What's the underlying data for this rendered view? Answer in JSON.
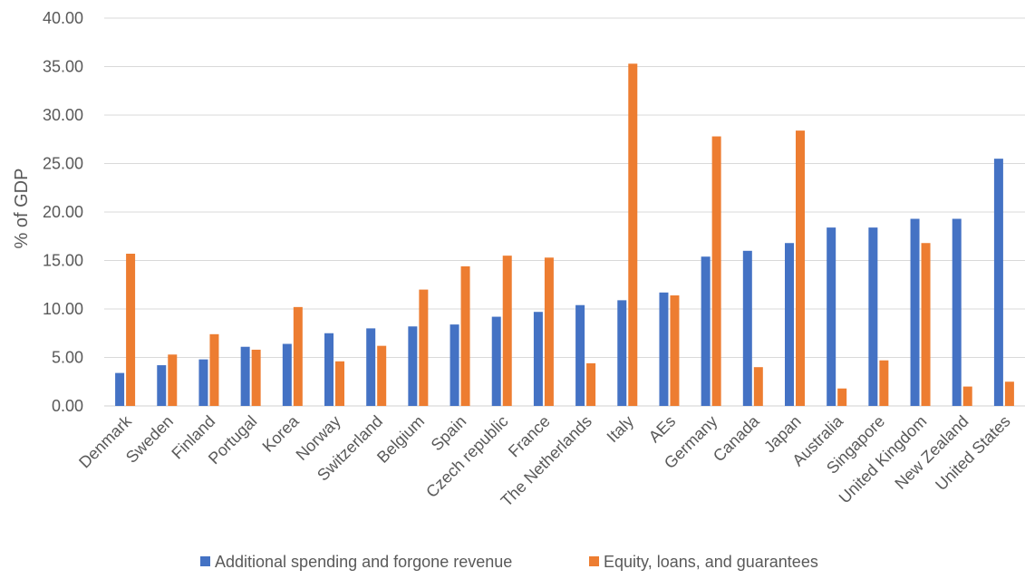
{
  "chart_data": {
    "type": "bar",
    "title": "",
    "xlabel": "",
    "ylabel": "% of GDP",
    "ylim": [
      0,
      40
    ],
    "yticks": [
      "0.00",
      "5.00",
      "10.00",
      "15.00",
      "20.00",
      "25.00",
      "30.00",
      "35.00",
      "40.00"
    ],
    "grid": true,
    "legend_position": "bottom",
    "categories": [
      "Denmark",
      "Sweden",
      "Finland",
      "Portugal",
      "Korea",
      "Norway",
      "Switzerland",
      "Belgium",
      "Spain",
      "Czech republic",
      "France",
      "The Netherlands",
      "Italy",
      "AEs",
      "Germany",
      "Canada",
      "Japan",
      "Australia",
      "Singapore",
      "United Kingdom",
      "New Zealand",
      "United States"
    ],
    "series": [
      {
        "name": "Additional spending and forgone revenue",
        "color": "#4472C4",
        "values": [
          3.4,
          4.2,
          4.8,
          6.1,
          6.4,
          7.5,
          8.0,
          8.2,
          8.4,
          9.2,
          9.7,
          10.4,
          10.9,
          11.7,
          15.4,
          16.0,
          16.8,
          18.4,
          18.4,
          19.3,
          19.3,
          25.5
        ]
      },
      {
        "name": "Equity, loans, and guarantees",
        "color": "#ED7D31",
        "values": [
          15.7,
          5.3,
          7.4,
          5.8,
          10.2,
          4.6,
          6.2,
          12.0,
          14.4,
          15.5,
          15.3,
          4.4,
          35.3,
          11.4,
          27.8,
          4.0,
          28.4,
          1.8,
          4.7,
          16.8,
          2.0,
          2.5
        ]
      }
    ]
  }
}
